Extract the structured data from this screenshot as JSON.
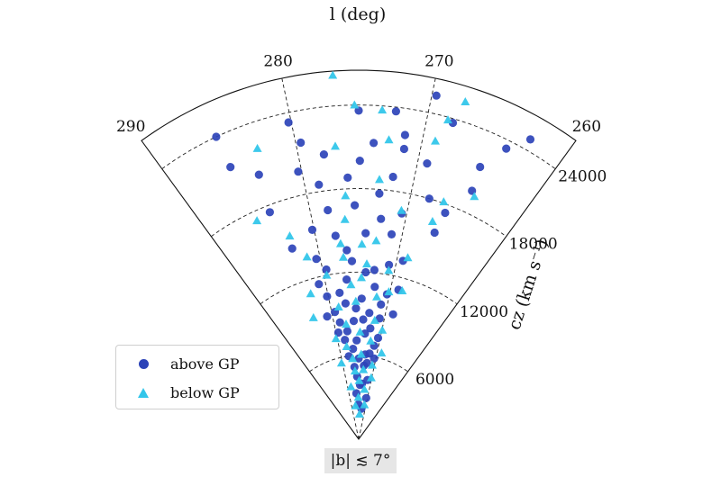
{
  "chart_data": {
    "type": "scatter",
    "projection": "polar-wedge",
    "title": "",
    "theta_label": "l (deg)",
    "r_label": "cz (km s⁻¹)",
    "theta_range": [
      260,
      290
    ],
    "r_range": [
      0,
      26500
    ],
    "theta_ticks": [
      "290",
      "280",
      "270",
      "260"
    ],
    "r_ticks": [
      "6000",
      "12000",
      "18000",
      "24000"
    ],
    "grid": true,
    "legend_position": "bottom-left",
    "annotation": "|b| ≲ 7°",
    "colors": {
      "above": "#2c43b8",
      "below": "#33c6ea"
    },
    "series": [
      {
        "name": "above GP",
        "marker": "circle",
        "points": [
          [
            270.7,
            3000
          ],
          [
            272.9,
            2200
          ],
          [
            275.2,
            2500
          ],
          [
            276.2,
            3300
          ],
          [
            273.6,
            4000
          ],
          [
            274.4,
            3900
          ],
          [
            271.5,
            4300
          ],
          [
            275.6,
            4500
          ],
          [
            276.4,
            5200
          ],
          [
            273.3,
            5300
          ],
          [
            277.8,
            6000
          ],
          [
            272.4,
            5500
          ],
          [
            275.0,
            5800
          ],
          [
            270.5,
            5900
          ],
          [
            276.5,
            6500
          ],
          [
            273.2,
            6100
          ],
          [
            271.1,
            6800
          ],
          [
            278.3,
            7200
          ],
          [
            272.0,
            6200
          ],
          [
            275.5,
            7100
          ],
          [
            277.5,
            7800
          ],
          [
            273.6,
            7600
          ],
          [
            279.5,
            7800
          ],
          [
            270.5,
            7400
          ],
          [
            272.5,
            8000
          ],
          [
            278.8,
            8500
          ],
          [
            276.0,
            8500
          ],
          [
            270.9,
            8800
          ],
          [
            274.1,
            8600
          ],
          [
            273.0,
            9100
          ],
          [
            279.4,
            9300
          ],
          [
            281.0,
            9100
          ],
          [
            268.6,
            9300
          ],
          [
            275.5,
            9400
          ],
          [
            277.3,
            9800
          ],
          [
            271.1,
            9800
          ],
          [
            280.2,
            10500
          ],
          [
            274.5,
            10100
          ],
          [
            270.4,
            10600
          ],
          [
            278.1,
            10600
          ],
          [
            272.5,
            11000
          ],
          [
            281.0,
            11500
          ],
          [
            276.8,
            11500
          ],
          [
            268.8,
            11100
          ],
          [
            274.0,
            12000
          ],
          [
            279.5,
            12400
          ],
          [
            270.9,
            12700
          ],
          [
            275.9,
            12800
          ],
          [
            272.8,
            12200
          ],
          [
            280.5,
            13300
          ],
          [
            276.5,
            13600
          ],
          [
            269.2,
            13200
          ],
          [
            283.0,
            14500
          ],
          [
            277.7,
            14700
          ],
          [
            274.2,
            14800
          ],
          [
            271.2,
            14900
          ],
          [
            266.6,
            15800
          ],
          [
            280.2,
            15400
          ],
          [
            272.6,
            15900
          ],
          [
            278.2,
            16600
          ],
          [
            270.5,
            16500
          ],
          [
            275.4,
            16800
          ],
          [
            266.3,
            17400
          ],
          [
            283.9,
            17500
          ],
          [
            273.0,
            17700
          ],
          [
            268.2,
            18000
          ],
          [
            278.7,
            18500
          ],
          [
            276.0,
            18800
          ],
          [
            271.9,
            19000
          ],
          [
            280.3,
            19700
          ],
          [
            264.8,
            19600
          ],
          [
            274.9,
            20000
          ],
          [
            283.6,
            20300
          ],
          [
            269.2,
            20400
          ],
          [
            277.9,
            20600
          ],
          [
            271.3,
            21100
          ],
          [
            279.6,
            21700
          ],
          [
            285.5,
            21600
          ],
          [
            265.0,
            21400
          ],
          [
            273.8,
            21300
          ],
          [
            271.4,
            22100
          ],
          [
            280.2,
            23300
          ],
          [
            275.0,
            23600
          ],
          [
            272.3,
            23700
          ],
          [
            268.1,
            23700
          ],
          [
            263.8,
            23400
          ],
          [
            285.5,
            24000
          ],
          [
            269.7,
            25300
          ],
          [
            262.6,
            24800
          ]
        ]
      },
      {
        "name": "below GP",
        "marker": "triangle",
        "points": [
          [
            274.2,
            1800
          ],
          [
            277.3,
            2400
          ],
          [
            271.1,
            2500
          ],
          [
            275.2,
            3000
          ],
          [
            272.3,
            3600
          ],
          [
            278.5,
            3800
          ],
          [
            274.8,
            4200
          ],
          [
            270.2,
            4500
          ],
          [
            276.3,
            4900
          ],
          [
            273.4,
            5000
          ],
          [
            280.3,
            5600
          ],
          [
            270.7,
            5400
          ],
          [
            276.8,
            5800
          ],
          [
            274.3,
            6100
          ],
          [
            268.8,
            6400
          ],
          [
            278.1,
            6700
          ],
          [
            272.1,
            7100
          ],
          [
            280.3,
            7400
          ],
          [
            274.7,
            7700
          ],
          [
            269.9,
            8000
          ],
          [
            277.6,
            8300
          ],
          [
            271.8,
            8600
          ],
          [
            283.5,
            9300
          ],
          [
            278.6,
            9600
          ],
          [
            275.5,
            9900
          ],
          [
            272.0,
            10300
          ],
          [
            270.2,
            10800
          ],
          [
            282.6,
            11000
          ],
          [
            276.2,
            11100
          ],
          [
            268.2,
            11100
          ],
          [
            274.6,
            11600
          ],
          [
            279.6,
            12000
          ],
          [
            270.8,
            12300
          ],
          [
            273.9,
            12600
          ],
          [
            277.0,
            13100
          ],
          [
            268.7,
            13500
          ],
          [
            281.6,
            13600
          ],
          [
            274.6,
            14000
          ],
          [
            277.2,
            14100
          ],
          [
            272.9,
            14300
          ],
          [
            282.8,
            15400
          ],
          [
            276.5,
            15800
          ],
          [
            267.2,
            16500
          ],
          [
            270.6,
            16700
          ],
          [
            285.4,
            17300
          ],
          [
            276.3,
            17500
          ],
          [
            266.8,
            18100
          ],
          [
            273.1,
            18700
          ],
          [
            264.4,
            19300
          ],
          [
            276.9,
            21100
          ],
          [
            272.6,
            21600
          ],
          [
            283.0,
            22100
          ],
          [
            269.0,
            22100
          ],
          [
            268.5,
            23800
          ],
          [
            273.3,
            23700
          ],
          [
            275.3,
            24000
          ],
          [
            276.7,
            26200
          ],
          [
            267.7,
            25400
          ]
        ]
      }
    ]
  }
}
